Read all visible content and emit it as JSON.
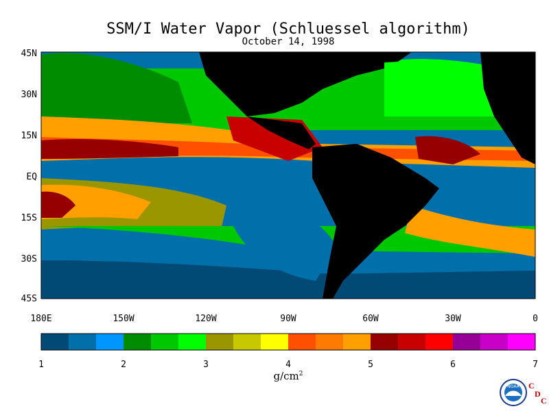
{
  "title": "SSM/I Water Vapor (Schluessel algorithm)",
  "subtitle": "October 14, 1998",
  "lat_labels": [
    "45N",
    "30N",
    "15N",
    "EQ",
    "15S",
    "30S",
    "45S"
  ],
  "lon_labels": [
    "180E",
    "150W",
    "120W",
    "90W",
    "60W",
    "30W",
    "0"
  ],
  "colorbar": {
    "ticks": [
      "1",
      "2",
      "3",
      "4",
      "5",
      "6",
      "7"
    ],
    "units": "g/cm",
    "units_sup": "2",
    "colors": [
      "#004a75",
      "#006faa",
      "#0096ff",
      "#008c00",
      "#00c800",
      "#00ff00",
      "#9a9600",
      "#c8c800",
      "#ffff00",
      "#ff5000",
      "#ff7a00",
      "#ffa000",
      "#960000",
      "#c80000",
      "#ff0000",
      "#960096",
      "#c800c8",
      "#ff00ff"
    ]
  },
  "logo": {
    "text": "NOAA",
    "cdc": [
      "C",
      "D",
      "C"
    ]
  },
  "colors": {
    "land": "#000000",
    "ocean_low": "#006faa",
    "ocean_deep": "#004a75"
  }
}
